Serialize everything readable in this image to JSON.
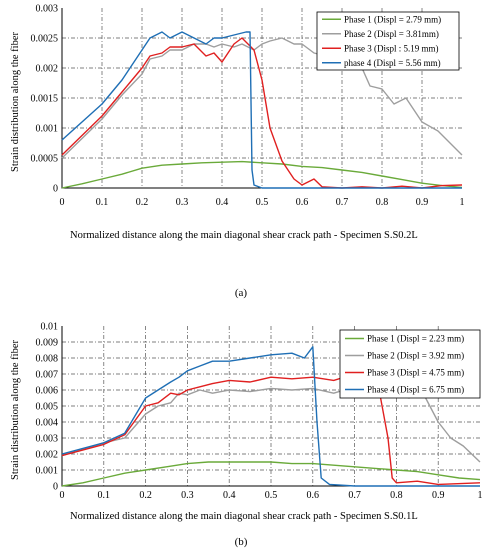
{
  "chart_data": [
    {
      "type": "line",
      "panel_label": "(a)",
      "xlabel": "Normalized distance along the main diagonal shear crack  path  - Specimen S.S0.2L",
      "ylabel": "Strain distribution along the fiber",
      "xlim": [
        0,
        1
      ],
      "ylim": [
        0,
        0.003
      ],
      "xticks": [
        "0",
        "0.1",
        "0.2",
        "0.3",
        "0.4",
        "0.5",
        "0.6",
        "0.7",
        "0.8",
        "0.9",
        "1"
      ],
      "yticks": [
        "0",
        "0.0005",
        "0.001",
        "0.0015",
        "0.002",
        "0.0025",
        "0.003"
      ],
      "grid": true,
      "legend_position": "top-right",
      "series": [
        {
          "name": "Phase 1 (Displ = 2.79 mm)",
          "color": "#6aaa3a",
          "points": [
            [
              0,
              0.0
            ],
            [
              0.05,
              7e-05
            ],
            [
              0.1,
              0.00015
            ],
            [
              0.15,
              0.00023
            ],
            [
              0.2,
              0.00033
            ],
            [
              0.25,
              0.00038
            ],
            [
              0.3,
              0.0004
            ],
            [
              0.35,
              0.00042
            ],
            [
              0.4,
              0.00043
            ],
            [
              0.45,
              0.00044
            ],
            [
              0.5,
              0.00042
            ],
            [
              0.55,
              0.0004
            ],
            [
              0.6,
              0.00036
            ],
            [
              0.65,
              0.00034
            ],
            [
              0.7,
              0.0003
            ],
            [
              0.75,
              0.00026
            ],
            [
              0.8,
              0.0002
            ],
            [
              0.85,
              0.00014
            ],
            [
              0.9,
              8e-05
            ],
            [
              0.95,
              4e-05
            ],
            [
              1.0,
              1e-05
            ]
          ]
        },
        {
          "name": "Phase 2 (Displ = 3.81mm)",
          "color": "#9e9e9e",
          "points": [
            [
              0,
              0.0005
            ],
            [
              0.1,
              0.00115
            ],
            [
              0.15,
              0.00155
            ],
            [
              0.2,
              0.0019
            ],
            [
              0.22,
              0.00215
            ],
            [
              0.25,
              0.0022
            ],
            [
              0.27,
              0.0023
            ],
            [
              0.3,
              0.0023
            ],
            [
              0.33,
              0.0024
            ],
            [
              0.36,
              0.0024
            ],
            [
              0.38,
              0.00235
            ],
            [
              0.4,
              0.0024
            ],
            [
              0.43,
              0.00235
            ],
            [
              0.45,
              0.0024
            ],
            [
              0.48,
              0.0023
            ],
            [
              0.5,
              0.0024
            ],
            [
              0.52,
              0.00245
            ],
            [
              0.55,
              0.0025
            ],
            [
              0.58,
              0.0024
            ],
            [
              0.6,
              0.0024
            ],
            [
              0.63,
              0.00225
            ],
            [
              0.66,
              0.0022
            ],
            [
              0.7,
              0.0022
            ],
            [
              0.74,
              0.00215
            ],
            [
              0.77,
              0.0017
            ],
            [
              0.8,
              0.00165
            ],
            [
              0.83,
              0.0014
            ],
            [
              0.86,
              0.0015
            ],
            [
              0.9,
              0.0011
            ],
            [
              0.94,
              0.00095
            ],
            [
              0.97,
              0.00075
            ],
            [
              1.0,
              0.00055
            ]
          ]
        },
        {
          "name": "Phase 3 (Displ : 5.19 mm)",
          "color": "#e02020",
          "points": [
            [
              0,
              0.00055
            ],
            [
              0.1,
              0.0012
            ],
            [
              0.15,
              0.0016
            ],
            [
              0.2,
              0.002
            ],
            [
              0.22,
              0.0022
            ],
            [
              0.25,
              0.00225
            ],
            [
              0.27,
              0.00235
            ],
            [
              0.3,
              0.00235
            ],
            [
              0.33,
              0.0024
            ],
            [
              0.36,
              0.0022
            ],
            [
              0.38,
              0.00225
            ],
            [
              0.4,
              0.0021
            ],
            [
              0.43,
              0.0024
            ],
            [
              0.45,
              0.0025
            ],
            [
              0.48,
              0.0023
            ],
            [
              0.5,
              0.0018
            ],
            [
              0.52,
              0.001
            ],
            [
              0.55,
              0.00045
            ],
            [
              0.58,
              0.00015
            ],
            [
              0.6,
              5e-05
            ],
            [
              0.63,
              0.00015
            ],
            [
              0.65,
              2e-05
            ],
            [
              0.7,
              0.0
            ],
            [
              0.75,
              2e-05
            ],
            [
              0.8,
              0.0
            ],
            [
              0.85,
              3e-05
            ],
            [
              0.9,
              0.0
            ],
            [
              0.95,
              4e-05
            ],
            [
              1.0,
              5e-05
            ]
          ]
        },
        {
          "name": "phase 4 (Displ = 5.56 mm)",
          "color": "#1f6fb5",
          "points": [
            [
              0,
              0.0008
            ],
            [
              0.1,
              0.0014
            ],
            [
              0.15,
              0.0018
            ],
            [
              0.2,
              0.0023
            ],
            [
              0.22,
              0.0025
            ],
            [
              0.25,
              0.0026
            ],
            [
              0.27,
              0.0025
            ],
            [
              0.3,
              0.0026
            ],
            [
              0.33,
              0.0025
            ],
            [
              0.36,
              0.0024
            ],
            [
              0.38,
              0.0025
            ],
            [
              0.4,
              0.0025
            ],
            [
              0.43,
              0.00255
            ],
            [
              0.46,
              0.0026
            ],
            [
              0.47,
              0.0026
            ],
            [
              0.475,
              0.0003
            ],
            [
              0.48,
              5e-05
            ],
            [
              0.5,
              0.0
            ],
            [
              1.0,
              0.0
            ]
          ]
        }
      ]
    },
    {
      "type": "line",
      "panel_label": "(b)",
      "xlabel": "Normalized distance along the main diagonal shear crack  path  - Specimen S.S0.1L",
      "ylabel": "Strain distribution along the fiber",
      "xlim": [
        0,
        1
      ],
      "ylim": [
        0,
        0.01
      ],
      "xticks": [
        "0",
        "0.1",
        "0.2",
        "0.3",
        "0.4",
        "0.5",
        "0.6",
        "0.7",
        "0.8",
        "0.9",
        "1"
      ],
      "yticks": [
        "0",
        "0.001",
        "0.002",
        "0.003",
        "0.004",
        "0.005",
        "0.006",
        "0.007",
        "0.008",
        "0.009",
        "0.01"
      ],
      "grid": true,
      "legend_position": "top-right",
      "series": [
        {
          "name": "Phase 1 (Displ = 2.23 mm)",
          "color": "#6aaa3a",
          "points": [
            [
              0,
              0.0
            ],
            [
              0.05,
              0.0002
            ],
            [
              0.1,
              0.0005
            ],
            [
              0.15,
              0.0008
            ],
            [
              0.2,
              0.001
            ],
            [
              0.25,
              0.0012
            ],
            [
              0.3,
              0.0014
            ],
            [
              0.35,
              0.0015
            ],
            [
              0.4,
              0.0015
            ],
            [
              0.45,
              0.0015
            ],
            [
              0.5,
              0.0015
            ],
            [
              0.55,
              0.0014
            ],
            [
              0.6,
              0.0014
            ],
            [
              0.65,
              0.0013
            ],
            [
              0.7,
              0.0012
            ],
            [
              0.75,
              0.0011
            ],
            [
              0.8,
              0.001
            ],
            [
              0.85,
              0.0009
            ],
            [
              0.9,
              0.0007
            ],
            [
              0.95,
              0.0005
            ],
            [
              1.0,
              0.0004
            ]
          ]
        },
        {
          "name": "Phase 2 (Displ = 3.92 mm)",
          "color": "#9e9e9e",
          "points": [
            [
              0,
              0.0019
            ],
            [
              0.1,
              0.0027
            ],
            [
              0.15,
              0.003
            ],
            [
              0.2,
              0.0045
            ],
            [
              0.23,
              0.005
            ],
            [
              0.26,
              0.0052
            ],
            [
              0.28,
              0.0058
            ],
            [
              0.3,
              0.0057
            ],
            [
              0.33,
              0.006
            ],
            [
              0.36,
              0.0058
            ],
            [
              0.4,
              0.006
            ],
            [
              0.45,
              0.0059
            ],
            [
              0.5,
              0.0061
            ],
            [
              0.55,
              0.006
            ],
            [
              0.6,
              0.0061
            ],
            [
              0.65,
              0.0058
            ],
            [
              0.7,
              0.0062
            ],
            [
              0.75,
              0.006
            ],
            [
              0.8,
              0.0058
            ],
            [
              0.83,
              0.0055
            ],
            [
              0.86,
              0.006
            ],
            [
              0.88,
              0.005
            ],
            [
              0.9,
              0.004
            ],
            [
              0.93,
              0.003
            ],
            [
              0.96,
              0.0025
            ],
            [
              1.0,
              0.0015
            ]
          ]
        },
        {
          "name": "Phase 3 (Displ = 4.75 mm)",
          "color": "#e02020",
          "points": [
            [
              0,
              0.0019
            ],
            [
              0.1,
              0.0026
            ],
            [
              0.15,
              0.0032
            ],
            [
              0.2,
              0.005
            ],
            [
              0.23,
              0.0052
            ],
            [
              0.26,
              0.0058
            ],
            [
              0.28,
              0.0057
            ],
            [
              0.3,
              0.006
            ],
            [
              0.33,
              0.0062
            ],
            [
              0.36,
              0.0064
            ],
            [
              0.4,
              0.0066
            ],
            [
              0.45,
              0.0065
            ],
            [
              0.5,
              0.0068
            ],
            [
              0.55,
              0.0067
            ],
            [
              0.6,
              0.0068
            ],
            [
              0.65,
              0.0066
            ],
            [
              0.7,
              0.007
            ],
            [
              0.73,
              0.0068
            ],
            [
              0.76,
              0.0058
            ],
            [
              0.78,
              0.003
            ],
            [
              0.79,
              0.0005
            ],
            [
              0.8,
              0.0002
            ],
            [
              0.85,
              0.0003
            ],
            [
              0.9,
              0.0001
            ],
            [
              1.0,
              0.0002
            ]
          ]
        },
        {
          "name": "Phase 4 (Displ = 6.75 mm)",
          "color": "#1f6fb5",
          "points": [
            [
              0,
              0.002
            ],
            [
              0.1,
              0.0027
            ],
            [
              0.15,
              0.0033
            ],
            [
              0.2,
              0.0055
            ],
            [
              0.23,
              0.006
            ],
            [
              0.26,
              0.0065
            ],
            [
              0.28,
              0.0068
            ],
            [
              0.3,
              0.0072
            ],
            [
              0.33,
              0.0075
            ],
            [
              0.36,
              0.0078
            ],
            [
              0.4,
              0.0078
            ],
            [
              0.45,
              0.008
            ],
            [
              0.5,
              0.0082
            ],
            [
              0.55,
              0.0083
            ],
            [
              0.58,
              0.008
            ],
            [
              0.6,
              0.0087
            ],
            [
              0.61,
              0.004
            ],
            [
              0.62,
              0.0005
            ],
            [
              0.64,
              0.0001
            ],
            [
              0.7,
              0.0
            ],
            [
              1.0,
              0.0
            ]
          ]
        }
      ]
    }
  ]
}
